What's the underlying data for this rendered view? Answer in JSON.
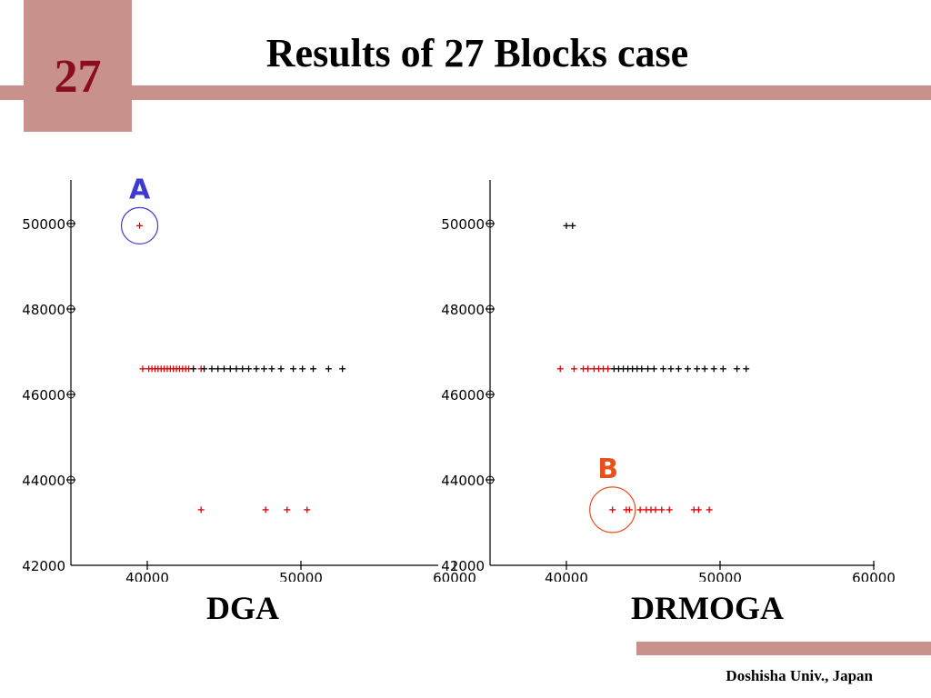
{
  "slide": {
    "page_number": "27",
    "title": "Results of 27 Blocks case",
    "footer": "Doshisha Univ., Japan"
  },
  "colors": {
    "accent": "#c9918c",
    "page_number": "#8b0c1b",
    "red_points": "#e00000",
    "black_points": "#000000",
    "circle_A": "#3b3bd0",
    "circle_B": "#e8501e"
  },
  "chart_data": [
    {
      "type": "scatter",
      "label": "DGA",
      "xlim": [
        37000,
        60000
      ],
      "ylim": [
        42000,
        51000
      ],
      "x_ticks": [
        "40000",
        "50000",
        "60000"
      ],
      "y_ticks": [
        "42000",
        "44000",
        "46000",
        "48000",
        "50000"
      ],
      "grid": false,
      "series": [
        {
          "color": "red",
          "points": [
            [
              39500,
              49950
            ],
            [
              39700,
              46600
            ],
            [
              40100,
              46600
            ],
            [
              40300,
              46600
            ],
            [
              40500,
              46600
            ],
            [
              40700,
              46600
            ],
            [
              40900,
              46600
            ],
            [
              41100,
              46600
            ],
            [
              41300,
              46600
            ],
            [
              41500,
              46600
            ],
            [
              41700,
              46600
            ],
            [
              41900,
              46600
            ],
            [
              42100,
              46600
            ],
            [
              42300,
              46600
            ],
            [
              42500,
              46600
            ],
            [
              42700,
              46600
            ],
            [
              43500,
              46600
            ],
            [
              43500,
              43300
            ],
            [
              47700,
              43300
            ],
            [
              49100,
              43300
            ],
            [
              50400,
              43300
            ]
          ]
        },
        {
          "color": "black",
          "points": [
            [
              43000,
              46600
            ],
            [
              43700,
              46600
            ],
            [
              44200,
              46600
            ],
            [
              44600,
              46600
            ],
            [
              45000,
              46600
            ],
            [
              45400,
              46600
            ],
            [
              45800,
              46600
            ],
            [
              46200,
              46600
            ],
            [
              46600,
              46600
            ],
            [
              47100,
              46600
            ],
            [
              47600,
              46600
            ],
            [
              48100,
              46600
            ],
            [
              48700,
              46600
            ],
            [
              49500,
              46600
            ],
            [
              50100,
              46600
            ],
            [
              50800,
              46600
            ],
            [
              51800,
              46600
            ],
            [
              52700,
              46600
            ]
          ]
        }
      ],
      "annotation": {
        "text": "A",
        "at": [
          39500,
          49950
        ]
      }
    },
    {
      "type": "scatter",
      "label": "DRMOGA",
      "xlim": [
        37000,
        60000
      ],
      "ylim": [
        42000,
        51000
      ],
      "x_ticks": [
        "40000",
        "50000",
        "60000"
      ],
      "y_ticks": [
        "42000",
        "44000",
        "46000",
        "48000",
        "50000"
      ],
      "grid": false,
      "series": [
        {
          "color": "red",
          "points": [
            [
              39600,
              46600
            ],
            [
              40500,
              46600
            ],
            [
              41100,
              46600
            ],
            [
              41400,
              46600
            ],
            [
              41800,
              46600
            ],
            [
              42100,
              46600
            ],
            [
              42400,
              46600
            ],
            [
              42700,
              46600
            ],
            [
              43000,
              43300
            ],
            [
              43900,
              43300
            ],
            [
              44100,
              43300
            ],
            [
              44800,
              43300
            ],
            [
              45200,
              43300
            ],
            [
              45500,
              43300
            ],
            [
              45800,
              43300
            ],
            [
              46200,
              43300
            ],
            [
              46700,
              43300
            ],
            [
              48300,
              43300
            ],
            [
              48600,
              43300
            ],
            [
              49300,
              43300
            ]
          ]
        },
        {
          "color": "black",
          "points": [
            [
              40000,
              49950
            ],
            [
              40400,
              49950
            ],
            [
              43100,
              46600
            ],
            [
              43400,
              46600
            ],
            [
              43700,
              46600
            ],
            [
              44000,
              46600
            ],
            [
              44300,
              46600
            ],
            [
              44600,
              46600
            ],
            [
              44900,
              46600
            ],
            [
              45300,
              46600
            ],
            [
              45700,
              46600
            ],
            [
              46300,
              46600
            ],
            [
              46800,
              46600
            ],
            [
              47300,
              46600
            ],
            [
              47900,
              46600
            ],
            [
              48500,
              46600
            ],
            [
              49000,
              46600
            ],
            [
              49600,
              46600
            ],
            [
              50200,
              46600
            ],
            [
              51100,
              46600
            ],
            [
              51700,
              46600
            ]
          ]
        }
      ],
      "annotation": {
        "text": "B",
        "at": [
          43000,
          43300
        ]
      }
    }
  ]
}
